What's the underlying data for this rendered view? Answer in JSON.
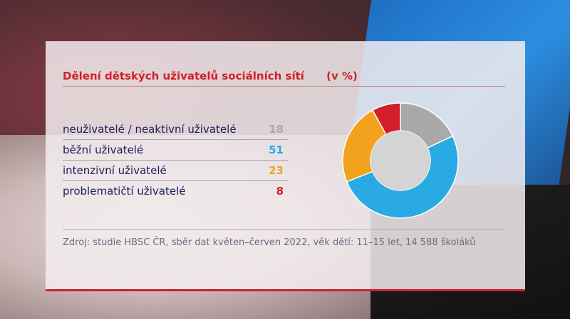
{
  "chart_data": {
    "type": "pie",
    "title": "Dělení dětských uživatelů sociálních sítí",
    "unit": "(v %)",
    "categories": [
      "neuživatelé / neaktivní uživatelé",
      "běžní uživatelé",
      "intenzivní uživatelé",
      "problematičtí uživatelé"
    ],
    "values": [
      18,
      51,
      23,
      8
    ],
    "colors": [
      "#a9a9a9",
      "#29aae2",
      "#f2a21c",
      "#d21f2a"
    ],
    "legend_placement": "left"
  },
  "source": "Zdroj: studie HBSC ČR, sběr dat květen–červen 2022, věk dětí: 11–15 let, 14 588 školáků",
  "colors": {
    "accent": "#d21f2a",
    "label": "#1b1f5e"
  }
}
